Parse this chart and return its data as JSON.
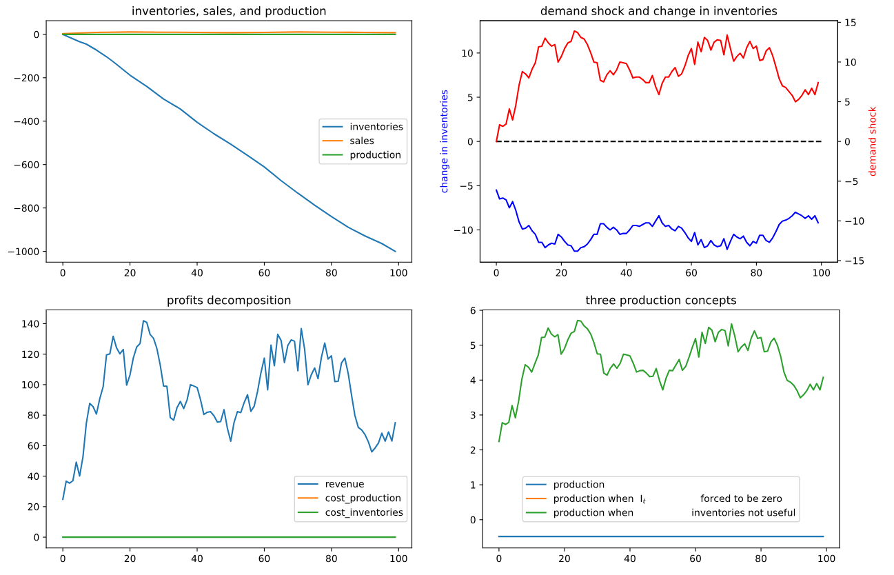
{
  "chart_data": [
    {
      "type": "line",
      "title": "inventories, sales, and production",
      "xlim": [
        -4.95,
        103.95
      ],
      "xticks": [
        0,
        20,
        40,
        60,
        80,
        100
      ],
      "ylim": [
        -1050,
        63
      ],
      "yticks": [
        {
          "value": -1000,
          "label": "−1000"
        },
        {
          "value": -800,
          "label": "−800"
        },
        {
          "value": -600,
          "label": "−600"
        },
        {
          "value": -400,
          "label": "−400"
        },
        {
          "value": -200,
          "label": "−200"
        },
        0
      ],
      "legend": "right",
      "series": [
        {
          "name": "inventories",
          "color": "#1f77b4",
          "x": [
            0,
            5,
            7,
            10,
            13,
            15,
            20,
            25,
            30,
            35,
            40,
            45,
            50,
            55,
            60,
            65,
            70,
            75,
            80,
            85,
            90,
            95,
            99
          ],
          "values": [
            0,
            -34,
            -45,
            -72,
            -103,
            -126,
            -188,
            -240,
            -298,
            -344,
            -405,
            -458,
            -506,
            -558,
            -611,
            -674,
            -732,
            -787,
            -840,
            -889,
            -929,
            -964,
            -1000
          ]
        },
        {
          "name": "sales",
          "color": "#ff7f0e",
          "x": [
            0,
            10,
            20,
            30,
            40,
            50,
            60,
            70,
            80,
            90,
            99
          ],
          "values": [
            3,
            9,
            11,
            10,
            9,
            8,
            9,
            11,
            10,
            9,
            8
          ]
        },
        {
          "name": "production",
          "color": "#2ca02c",
          "x": [
            0,
            99
          ],
          "values": [
            0,
            0
          ]
        }
      ]
    },
    {
      "type": "line",
      "title": "demand shock and change in inventories",
      "ylabel": "change in inventories",
      "y2label": "demand shock",
      "xlim": [
        -5,
        105
      ],
      "xticks": [
        0,
        20,
        40,
        60,
        80,
        100
      ],
      "ylim": [
        -13.65,
        13.65
      ],
      "yticks": [
        {
          "value": -10,
          "label": "−10"
        },
        {
          "value": -5,
          "label": "−5"
        },
        0,
        5,
        10
      ],
      "y2lim": [
        -15.2,
        15.2
      ],
      "y2ticks": [
        {
          "value": -15,
          "label": "−15"
        },
        {
          "value": -10,
          "label": "−10"
        },
        {
          "value": -5,
          "label": "−5"
        },
        0,
        5,
        10,
        15
      ],
      "x": [
        0,
        1,
        2,
        3,
        4,
        5,
        6,
        7,
        8,
        9,
        10,
        11,
        12,
        13,
        14,
        15,
        16,
        17,
        18,
        19,
        20,
        21,
        22,
        23,
        24,
        25,
        26,
        27,
        28,
        29,
        30,
        31,
        32,
        33,
        34,
        35,
        36,
        37,
        38,
        39,
        40,
        41,
        42,
        43,
        44,
        45,
        46,
        47,
        48,
        49,
        50,
        51,
        52,
        53,
        54,
        55,
        56,
        57,
        58,
        59,
        60,
        61,
        62,
        63,
        64,
        65,
        66,
        67,
        68,
        69,
        70,
        71,
        72,
        73,
        74,
        75,
        76,
        77,
        78,
        79,
        80,
        81,
        82,
        83,
        84,
        85,
        86,
        87,
        88,
        89,
        90,
        91,
        92,
        93,
        94,
        95,
        96,
        97,
        98,
        99
      ],
      "series": [
        {
          "color": "#0000ff",
          "axis": "y",
          "values": [
            -5.5,
            -6.5,
            -6.4,
            -6.6,
            -7.5,
            -6.8,
            -7.8,
            -9.1,
            -9.9,
            -9.8,
            -9.5,
            -10.1,
            -10.5,
            -11.4,
            -11.4,
            -12.0,
            -11.7,
            -11.5,
            -11.6,
            -10.5,
            -10.8,
            -11.3,
            -11.7,
            -11.8,
            -12.4,
            -12.4,
            -12.0,
            -11.9,
            -11.6,
            -11.1,
            -10.5,
            -10.5,
            -9.3,
            -9.3,
            -9.7,
            -10.0,
            -9.7,
            -10.0,
            -10.5,
            -10.4,
            -10.4,
            -10.0,
            -9.5,
            -9.5,
            -9.6,
            -9.4,
            -9.2,
            -9.2,
            -9.6,
            -9.0,
            -8.4,
            -9.2,
            -9.6,
            -9.5,
            -9.9,
            -10.1,
            -9.6,
            -9.8,
            -10.3,
            -10.9,
            -11.3,
            -10.3,
            -11.7,
            -11.1,
            -12.0,
            -11.8,
            -11.2,
            -11.7,
            -11.9,
            -11.8,
            -11.0,
            -12.2,
            -11.3,
            -10.5,
            -10.8,
            -11.0,
            -10.7,
            -11.4,
            -11.8,
            -11.3,
            -11.5,
            -10.6,
            -10.6,
            -11.2,
            -11.4,
            -10.9,
            -10.2,
            -9.4,
            -9.0,
            -8.9,
            -8.7,
            -8.4,
            -8.0,
            -8.2,
            -8.4,
            -8.7,
            -8.4,
            -8.8,
            -8.4,
            -9.2
          ]
        },
        {
          "color": "#000000",
          "axis": "y2",
          "line_style": "dashed",
          "x": [
            0,
            100
          ],
          "values": [
            0,
            0
          ]
        },
        {
          "color": "#ff0000",
          "axis": "y2",
          "values": [
            0,
            2.1,
            1.9,
            2.2,
            4.1,
            2.7,
            4.6,
            7.1,
            8.8,
            8.5,
            8.0,
            9.1,
            9.9,
            11.9,
            12.0,
            13.0,
            12.4,
            12.0,
            12.2,
            10.0,
            10.7,
            11.7,
            12.4,
            12.6,
            13.9,
            13.7,
            13.1,
            12.9,
            12.2,
            11.2,
            10.0,
            9.9,
            7.7,
            7.5,
            8.4,
            8.9,
            8.4,
            9.0,
            10.0,
            9.9,
            9.8,
            9.0,
            8.0,
            8.1,
            8.1,
            7.8,
            7.4,
            7.4,
            8.3,
            6.9,
            5.9,
            7.3,
            8.1,
            8.1,
            8.8,
            9.3,
            8.2,
            8.5,
            9.5,
            10.8,
            11.7,
            9.7,
            12.5,
            11.3,
            13.1,
            12.7,
            11.5,
            12.5,
            12.8,
            12.7,
            10.9,
            13.4,
            11.7,
            10.1,
            10.7,
            11.1,
            10.5,
            11.8,
            12.6,
            11.7,
            12.0,
            10.2,
            10.3,
            11.4,
            11.8,
            10.8,
            9.4,
            7.9,
            7.0,
            6.8,
            6.3,
            5.8,
            5.0,
            5.3,
            5.8,
            6.5,
            5.9,
            6.7,
            5.9,
            7.4
          ]
        }
      ]
    },
    {
      "type": "line",
      "title": "profits decomposition",
      "xlim": [
        -4.95,
        103.95
      ],
      "xticks": [
        0,
        20,
        40,
        60,
        80,
        100
      ],
      "ylim": [
        -7.1,
        149
      ],
      "yticks": [
        0,
        20,
        40,
        60,
        80,
        100,
        120,
        140
      ],
      "legend": "bottom right",
      "x": [
        0,
        1,
        2,
        3,
        4,
        5,
        6,
        7,
        8,
        9,
        10,
        11,
        12,
        13,
        14,
        15,
        16,
        17,
        18,
        19,
        20,
        21,
        22,
        23,
        24,
        25,
        26,
        27,
        28,
        29,
        30,
        31,
        32,
        33,
        34,
        35,
        36,
        37,
        38,
        39,
        40,
        41,
        42,
        43,
        44,
        45,
        46,
        47,
        48,
        49,
        50,
        51,
        52,
        53,
        54,
        55,
        56,
        57,
        58,
        59,
        60,
        61,
        62,
        63,
        64,
        65,
        66,
        67,
        68,
        69,
        70,
        71,
        72,
        73,
        74,
        75,
        76,
        77,
        78,
        79,
        80,
        81,
        82,
        83,
        84,
        85,
        86,
        87,
        88,
        89,
        90,
        91,
        92,
        93,
        94,
        95,
        96,
        97,
        98,
        99
      ],
      "series": [
        {
          "name": "revenue",
          "color": "#1f77b4",
          "values": [
            24.8,
            36.7,
            35.4,
            37.0,
            49.2,
            40.1,
            52.8,
            74.7,
            87.7,
            85.6,
            80.7,
            90.8,
            98.6,
            119.5,
            120.2,
            131.7,
            124.1,
            120.2,
            123.1,
            99.7,
            106.4,
            117.6,
            124.7,
            127.0,
            141.9,
            140.8,
            132.9,
            130.4,
            123.8,
            112.9,
            99.1,
            98.9,
            78.4,
            76.7,
            84.9,
            89.0,
            84.3,
            90.0,
            100.0,
            99.1,
            98.1,
            90.1,
            80.4,
            81.9,
            82.3,
            79.6,
            75.5,
            75.8,
            83.6,
            71.5,
            62.9,
            75.2,
            82.3,
            81.7,
            88.2,
            93.4,
            82.5,
            85.9,
            95.7,
            107.8,
            117.4,
            96.6,
            125.9,
            112.4,
            133.0,
            129.0,
            114.5,
            125.7,
            129.3,
            128.5,
            109.1,
            136.8,
            123.4,
            100.0,
            106.5,
            110.9,
            103.9,
            117.8,
            127.3,
            116.8,
            118.9,
            102.0,
            102.2,
            114.3,
            117.4,
            107.2,
            92.9,
            79.6,
            72.0,
            70.3,
            67.2,
            62.5,
            55.9,
            58.5,
            61.7,
            68.2,
            62.9,
            69.0,
            63.0,
            75.0
          ]
        },
        {
          "name": "cost_production",
          "color": "#ff7f0e",
          "values": [
            null,
            null,
            null,
            null,
            null,
            null,
            null,
            null,
            null,
            null,
            null,
            null,
            null,
            null,
            null,
            null,
            null,
            null,
            null,
            null,
            null,
            null,
            null,
            null,
            null,
            null,
            null,
            null,
            null,
            null,
            null,
            null,
            null,
            null,
            null,
            null,
            null,
            null,
            null,
            null,
            null,
            null,
            null,
            null,
            null,
            null,
            null,
            null,
            null,
            null,
            null,
            null,
            null,
            null,
            null,
            null,
            null,
            null,
            null,
            null,
            null,
            null,
            null,
            null,
            null,
            null,
            null,
            null,
            null,
            null,
            null,
            null,
            null,
            null,
            null,
            null,
            null,
            null,
            null,
            null,
            null,
            null,
            null,
            null,
            null,
            null,
            null,
            null,
            null,
            null,
            null,
            null,
            null,
            null,
            null,
            null,
            null,
            null,
            null,
            null
          ]
        },
        {
          "name": "cost_inventories",
          "color": "#2ca02c",
          "x": [
            0,
            99
          ],
          "values": [
            0,
            0
          ]
        }
      ]
    },
    {
      "type": "line",
      "title": "three production concepts",
      "xlim": [
        -4.95,
        103.95
      ],
      "xticks": [
        0,
        20,
        40,
        60,
        80,
        100
      ],
      "ylim": [
        -0.81,
        6.01
      ],
      "yticks": [
        0,
        1,
        2,
        3,
        4,
        5,
        6
      ],
      "legend": "bottom",
      "x": [
        0,
        1,
        2,
        3,
        4,
        5,
        6,
        7,
        8,
        9,
        10,
        11,
        12,
        13,
        14,
        15,
        16,
        17,
        18,
        19,
        20,
        21,
        22,
        23,
        24,
        25,
        26,
        27,
        28,
        29,
        30,
        31,
        32,
        33,
        34,
        35,
        36,
        37,
        38,
        39,
        40,
        41,
        42,
        43,
        44,
        45,
        46,
        47,
        48,
        49,
        50,
        51,
        52,
        53,
        54,
        55,
        56,
        57,
        58,
        59,
        60,
        61,
        62,
        63,
        64,
        65,
        66,
        67,
        68,
        69,
        70,
        71,
        72,
        73,
        74,
        75,
        76,
        77,
        78,
        79,
        80,
        81,
        82,
        83,
        84,
        85,
        86,
        87,
        88,
        89,
        90,
        91,
        92,
        93,
        94,
        95,
        96,
        97,
        98,
        99
      ],
      "series": [
        {
          "name": "production",
          "color": "#1f77b4",
          "x": [
            0,
            99
          ],
          "values": [
            -0.48,
            -0.48
          ]
        },
        {
          "name": "production when  I$_{t}$                  forced to be zero",
          "color": "#ff7f0e",
          "values": [
            null,
            null,
            null,
            null,
            null,
            null,
            null,
            null,
            null,
            null,
            null,
            null,
            null,
            null,
            null,
            null,
            null,
            null,
            null,
            null,
            null,
            null,
            null,
            null,
            null,
            null,
            null,
            null,
            null,
            null,
            null,
            null,
            null,
            null,
            null,
            null,
            null,
            null,
            null,
            null,
            null,
            null,
            null,
            null,
            null,
            null,
            null,
            null,
            null,
            null,
            null,
            null,
            null,
            null,
            null,
            null,
            null,
            null,
            null,
            null,
            null,
            null,
            null,
            null,
            null,
            null,
            null,
            null,
            null,
            null,
            null,
            null,
            null,
            null,
            null,
            null,
            null,
            null,
            null,
            null,
            null,
            null,
            null,
            null,
            null,
            null,
            null,
            null,
            null,
            null,
            null,
            null,
            null,
            null,
            null,
            null,
            null,
            null,
            null,
            null
          ]
        },
        {
          "name": "production when                   inventories not useful",
          "color": "#2ca02c",
          "values": [
            2.24,
            2.78,
            2.73,
            2.79,
            3.27,
            2.92,
            3.4,
            4.03,
            4.44,
            4.37,
            4.23,
            4.48,
            4.72,
            5.22,
            5.23,
            5.49,
            5.32,
            5.24,
            5.3,
            4.74,
            4.9,
            5.15,
            5.34,
            5.39,
            5.71,
            5.69,
            5.55,
            5.47,
            5.32,
            5.07,
            4.75,
            4.74,
            4.2,
            4.14,
            4.34,
            4.46,
            4.34,
            4.48,
            4.74,
            4.72,
            4.69,
            4.48,
            4.23,
            4.27,
            4.28,
            4.2,
            4.1,
            4.11,
            4.33,
            3.99,
            3.72,
            4.05,
            4.28,
            4.27,
            4.43,
            4.59,
            4.28,
            4.39,
            4.65,
            4.93,
            5.19,
            4.66,
            5.37,
            5.05,
            5.51,
            5.43,
            5.1,
            5.37,
            5.45,
            5.42,
            4.98,
            5.61,
            5.26,
            4.81,
            4.95,
            5.04,
            4.85,
            5.2,
            5.41,
            5.19,
            5.22,
            4.81,
            4.83,
            5.09,
            5.2,
            5.0,
            4.68,
            4.23,
            3.99,
            3.94,
            3.85,
            3.7,
            3.49,
            3.58,
            3.7,
            3.88,
            3.72,
            3.9,
            3.72,
            4.08
          ]
        }
      ]
    }
  ]
}
